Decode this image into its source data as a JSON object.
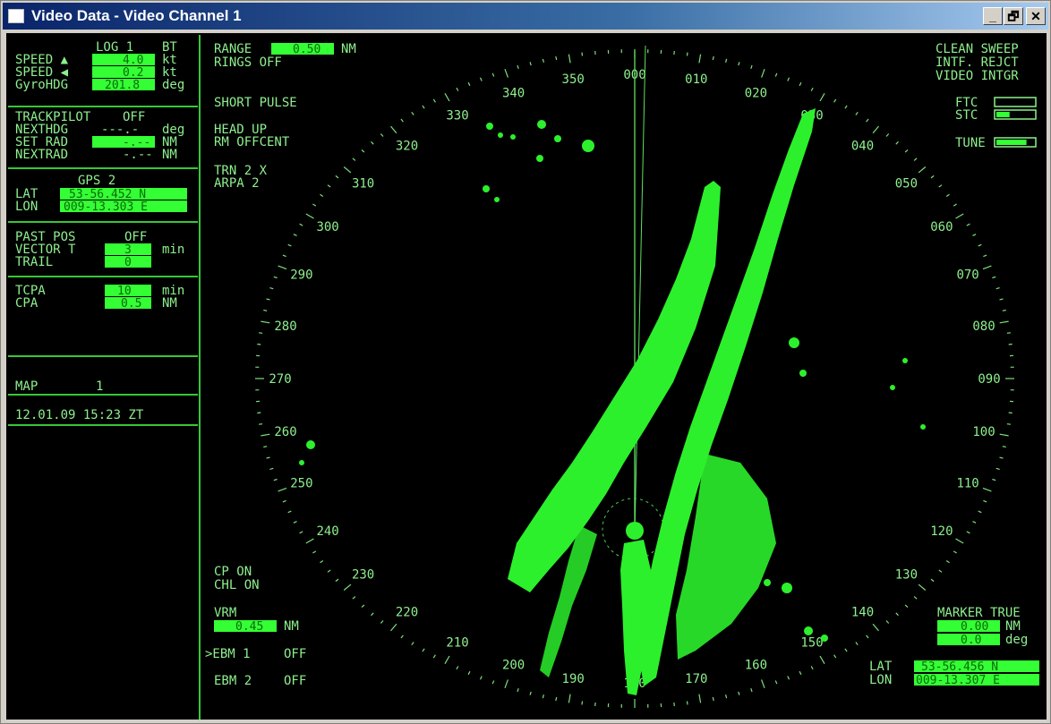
{
  "window": {
    "title": "Video Data - Video Channel 1",
    "buttons": [
      "_",
      "🗗",
      "✕"
    ]
  },
  "left_panel": {
    "log_header": {
      "log": "LOG 1",
      "mode": "BT"
    },
    "speed1": {
      "label": "SPEED ▲",
      "value": "4.0",
      "unit": "kt"
    },
    "speed2": {
      "label": "SPEED ◀",
      "value": "0.2",
      "unit": "kt"
    },
    "gyro": {
      "label": "GyroHDG",
      "value": "201.8",
      "unit": "deg"
    },
    "trackpilot": {
      "label": "TRACKPILOT",
      "value": "OFF"
    },
    "nexthdg": {
      "label": "NEXTHDG",
      "value": "---.-",
      "unit": "deg"
    },
    "setrad": {
      "label": "SET RAD",
      "value": "-.--",
      "unit": "NM"
    },
    "nextrad": {
      "label": "NEXTRAD",
      "value": "-.--",
      "unit": "NM"
    },
    "gps": "GPS 2",
    "lat": {
      "label": "LAT",
      "value": "53-56.452 N"
    },
    "lon": {
      "label": "LON",
      "value": "009-13.303 E"
    },
    "pastpos": {
      "label": "PAST POS",
      "value": "OFF"
    },
    "vector": {
      "label": "VECTOR T",
      "value": "3",
      "unit": "min"
    },
    "trail": {
      "label": "TRAIL",
      "value": "0"
    },
    "tcpa": {
      "label": "TCPA",
      "value": "10",
      "unit": "min"
    },
    "cpa": {
      "label": "CPA",
      "value": "0.5",
      "unit": "NM"
    },
    "map": {
      "label": "MAP",
      "value": "1"
    },
    "datetime": "12.01.09 15:23 ZT"
  },
  "radar": {
    "range": {
      "label": "RANGE",
      "value": "0.50",
      "unit": "NM"
    },
    "rings": "RINGS OFF",
    "pulse": "SHORT PULSE",
    "mode1": "HEAD UP",
    "mode2": "RM OFFCENT",
    "trn": "TRN 2 X",
    "arpa": "ARPA 2",
    "cp": "CP ON",
    "chl": "CHL ON",
    "vrm": {
      "label": "VRM",
      "value": "0.45",
      "unit": "NM"
    },
    "ebm1": {
      "label": ">EBM 1",
      "value": "OFF"
    },
    "ebm2": {
      "label": "EBM 2",
      "value": "OFF"
    },
    "top_right": [
      "CLEAN SWEEP",
      "INTF. REJCT",
      "VIDEO INTGR"
    ],
    "ftc": "FTC",
    "stc": "STC",
    "tune": "TUNE",
    "stc_level": 0.35,
    "tune_level": 0.8,
    "marker": {
      "label": "MARKER TRUE",
      "range": "0.00",
      "range_unit": "NM",
      "bearing": "0.0",
      "bearing_unit": "deg"
    },
    "cursor_lat": {
      "label": "LAT",
      "value": "53-56.456 N"
    },
    "cursor_lon": {
      "label": "LON",
      "value": "009-13.307 E"
    },
    "bearing_labels": [
      "000",
      "010",
      "020",
      "030",
      "040",
      "050",
      "060",
      "070",
      "080",
      "090",
      "100",
      "110",
      "120",
      "130",
      "140",
      "150",
      "160",
      "170",
      "180",
      "190",
      "200",
      "210",
      "220",
      "230",
      "240",
      "250",
      "260",
      "270",
      "280",
      "290",
      "300",
      "310",
      "320",
      "330",
      "340",
      "350"
    ]
  }
}
